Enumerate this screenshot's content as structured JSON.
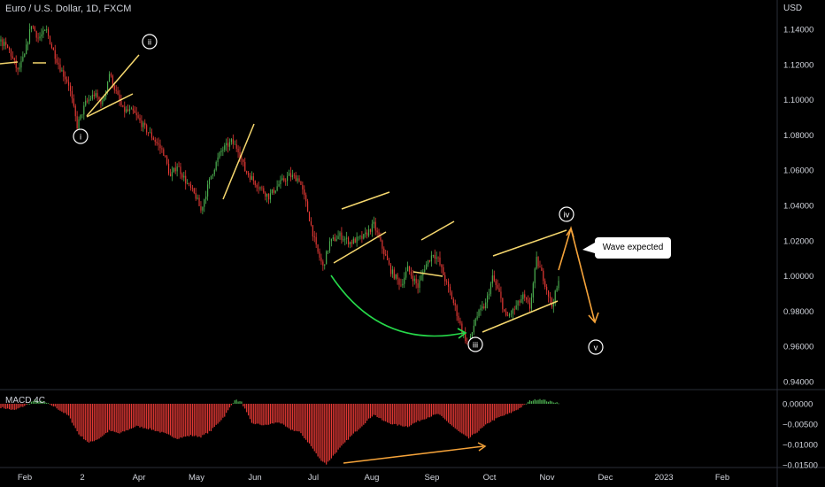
{
  "header": {
    "title": "Euro / U.S. Dollar, 1D, FXCM",
    "currency": "USD"
  },
  "macd": {
    "label": "MACD 4C",
    "ticks": [
      "0.00000",
      "−0.00500",
      "−0.01000",
      "−0.01500"
    ]
  },
  "callout": {
    "text": "Wave expected"
  },
  "waves": {
    "i": "i",
    "ii": "ii",
    "iii": "iii",
    "iv": "iv",
    "v": "v"
  },
  "colors": {
    "up": "#4caf50",
    "down": "#e53935",
    "trend": "#f5d76e",
    "arrow": "#f5a33a",
    "curve": "#26d94a",
    "bg": "#000000"
  },
  "chart_data": {
    "type": "candlestick",
    "title": "Euro / U.S. Dollar, 1D, FXCM",
    "ylabel": "USD",
    "ylim": [
      0.925,
      1.145
    ],
    "yticks": [
      "1.14000",
      "1.12000",
      "1.10000",
      "1.08000",
      "1.06000",
      "1.04000",
      "1.02000",
      "1.00000",
      "0.98000",
      "0.96000",
      "0.94000"
    ],
    "xticks": [
      "Feb",
      "2",
      "Apr",
      "May",
      "Jun",
      "Jul",
      "Aug",
      "Sep",
      "Oct",
      "Nov",
      "Dec",
      "2023",
      "Feb"
    ],
    "close_path": [
      [
        0,
        1.133
      ],
      [
        5,
        1.128
      ],
      [
        10,
        1.116
      ],
      [
        14,
        1.125
      ],
      [
        18,
        1.143
      ],
      [
        22,
        1.135
      ],
      [
        27,
        1.139
      ],
      [
        30,
        1.13
      ],
      [
        35,
        1.118
      ],
      [
        40,
        1.109
      ],
      [
        45,
        1.085
      ],
      [
        50,
        1.098
      ],
      [
        55,
        1.103
      ],
      [
        60,
        1.098
      ],
      [
        64,
        1.115
      ],
      [
        68,
        1.104
      ],
      [
        72,
        1.094
      ],
      [
        78,
        1.093
      ],
      [
        84,
        1.085
      ],
      [
        90,
        1.078
      ],
      [
        96,
        1.07
      ],
      [
        100,
        1.056
      ],
      [
        104,
        1.063
      ],
      [
        110,
        1.052
      ],
      [
        115,
        1.045
      ],
      [
        118,
        1.037
      ],
      [
        124,
        1.057
      ],
      [
        130,
        1.071
      ],
      [
        136,
        1.076
      ],
      [
        140,
        1.072
      ],
      [
        144,
        1.06
      ],
      [
        150,
        1.053
      ],
      [
        158,
        1.045
      ],
      [
        164,
        1.052
      ],
      [
        170,
        1.057
      ],
      [
        176,
        1.055
      ],
      [
        180,
        1.041
      ],
      [
        186,
        1.016
      ],
      [
        190,
        1.005
      ],
      [
        194,
        1.019
      ],
      [
        200,
        1.023
      ],
      [
        206,
        1.019
      ],
      [
        214,
        1.022
      ],
      [
        220,
        1.029
      ],
      [
        225,
        1.016
      ],
      [
        230,
        1.003
      ],
      [
        236,
        0.995
      ],
      [
        240,
        1.004
      ],
      [
        246,
        0.994
      ],
      [
        250,
        1.005
      ],
      [
        255,
        1.013
      ],
      [
        258,
        1.009
      ],
      [
        262,
        0.998
      ],
      [
        268,
        0.982
      ],
      [
        272,
        0.969
      ],
      [
        276,
        0.96
      ],
      [
        280,
        0.976
      ],
      [
        286,
        0.984
      ],
      [
        290,
        0.999
      ],
      [
        294,
        0.99
      ],
      [
        298,
        0.976
      ],
      [
        302,
        0.98
      ],
      [
        308,
        0.988
      ],
      [
        312,
        0.982
      ],
      [
        316,
        1.009
      ],
      [
        320,
        0.999
      ],
      [
        325,
        0.983
      ],
      [
        329,
        0.996
      ]
    ],
    "macd_hist_path": [
      [
        0,
        -0.0009
      ],
      [
        8,
        -0.0016
      ],
      [
        15,
        -0.0003
      ],
      [
        20,
        0.0009
      ],
      [
        26,
        0.0004
      ],
      [
        32,
        -0.0008
      ],
      [
        40,
        -0.003
      ],
      [
        46,
        -0.0075
      ],
      [
        52,
        -0.0096
      ],
      [
        58,
        -0.0085
      ],
      [
        64,
        -0.0066
      ],
      [
        70,
        -0.0073
      ],
      [
        80,
        -0.0055
      ],
      [
        88,
        -0.0062
      ],
      [
        96,
        -0.0072
      ],
      [
        104,
        -0.0085
      ],
      [
        112,
        -0.0078
      ],
      [
        118,
        -0.0081
      ],
      [
        124,
        -0.0066
      ],
      [
        132,
        -0.003
      ],
      [
        138,
        0.001
      ],
      [
        142,
        0.0004
      ],
      [
        148,
        -0.0048
      ],
      [
        156,
        -0.0053
      ],
      [
        164,
        -0.0045
      ],
      [
        170,
        -0.0062
      ],
      [
        176,
        -0.0069
      ],
      [
        182,
        -0.0098
      ],
      [
        188,
        -0.0135
      ],
      [
        192,
        -0.0148
      ],
      [
        198,
        -0.0118
      ],
      [
        206,
        -0.0082
      ],
      [
        214,
        -0.005
      ],
      [
        220,
        -0.0026
      ],
      [
        226,
        -0.0043
      ],
      [
        232,
        -0.0051
      ],
      [
        240,
        -0.0056
      ],
      [
        246,
        -0.0043
      ],
      [
        252,
        -0.0033
      ],
      [
        258,
        -0.0025
      ],
      [
        264,
        -0.0046
      ],
      [
        270,
        -0.0068
      ],
      [
        276,
        -0.0085
      ],
      [
        282,
        -0.0066
      ],
      [
        288,
        -0.0046
      ],
      [
        294,
        -0.0033
      ],
      [
        300,
        -0.0024
      ],
      [
        306,
        -0.0011
      ],
      [
        312,
        0.0007
      ],
      [
        318,
        0.0012
      ],
      [
        323,
        0.0006
      ],
      [
        329,
        0.0003
      ]
    ],
    "annotations": [
      {
        "label": "i",
        "x": 42,
        "y": 1.083
      },
      {
        "label": "ii",
        "x": 72,
        "y": 1.128
      },
      {
        "label": "iii",
        "x": 260,
        "y": 0.946
      },
      {
        "label": "iv",
        "x": 308,
        "y": 1.023
      },
      {
        "label": "v",
        "x": 323,
        "y": 0.944
      },
      {
        "label": "Wave expected",
        "x": 328,
        "y": 1.003
      }
    ]
  }
}
